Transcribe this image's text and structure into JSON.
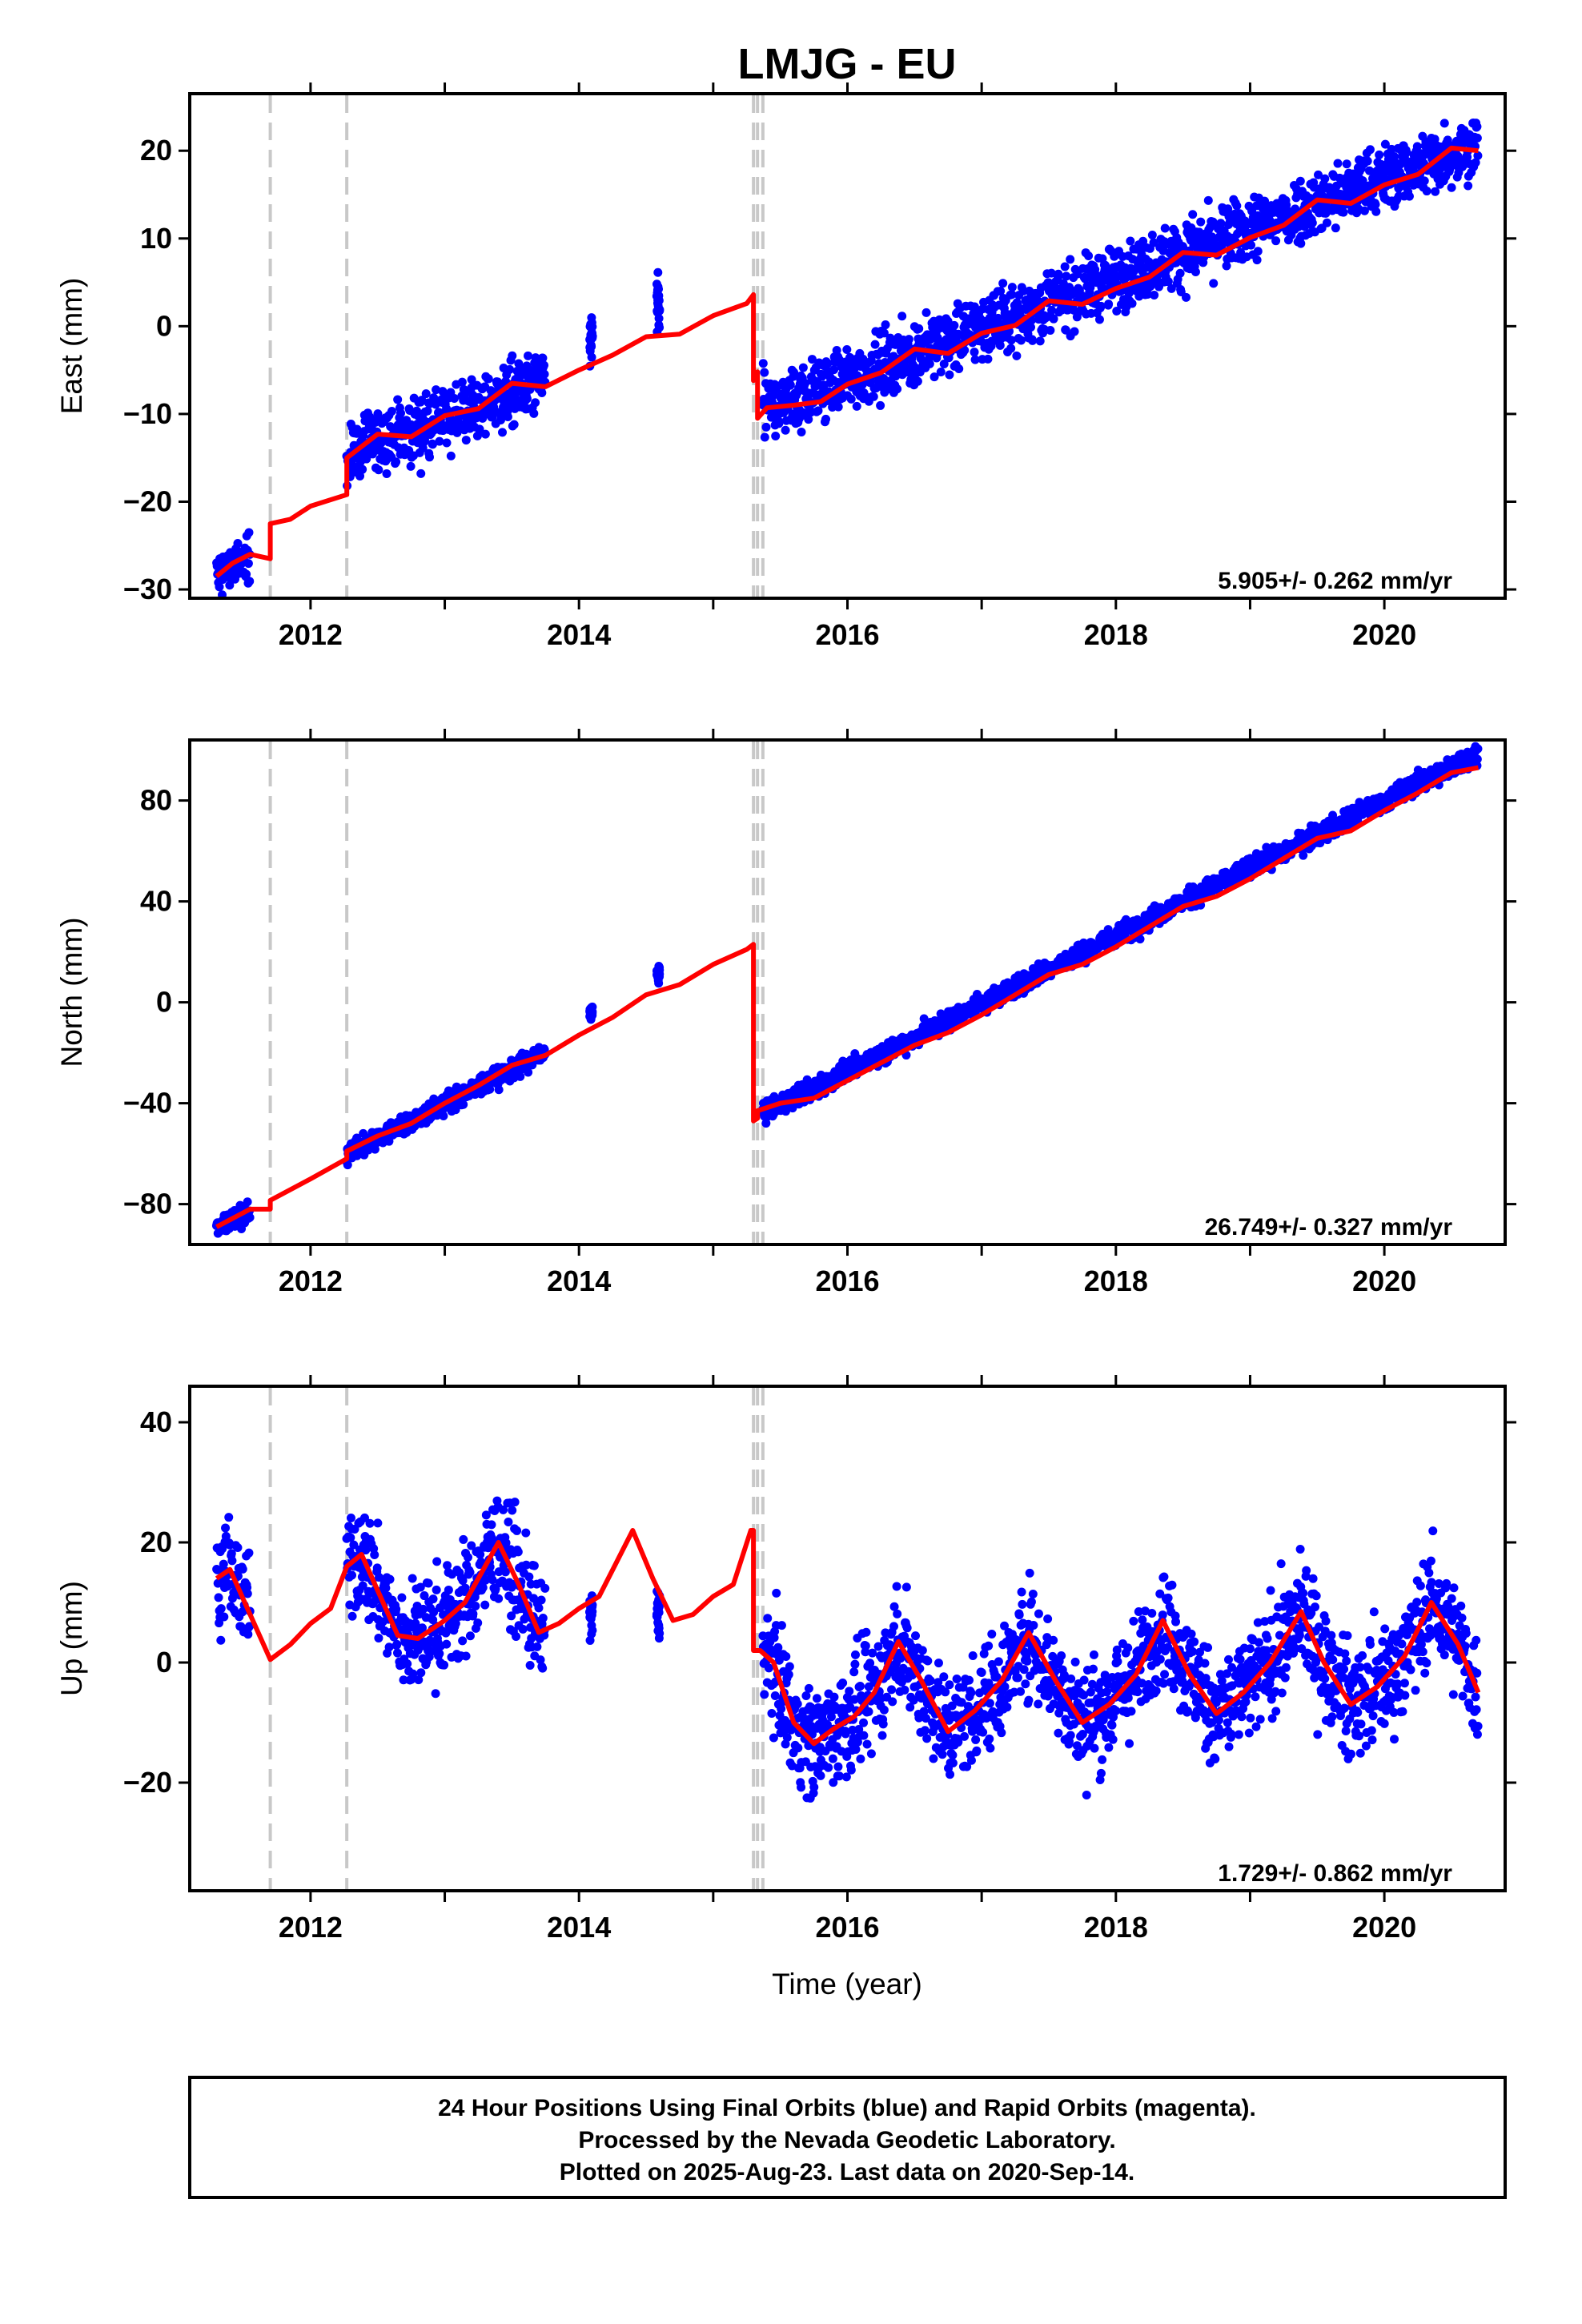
{
  "title": "LMJG - EU",
  "xlabel": "Time (year)",
  "caption": [
    "24 Hour Positions Using Final Orbits (blue) and Rapid Orbits (magenta).",
    "Processed by the Nevada Geodetic Laboratory.",
    "Plotted on 2025-Aug-23. Last data on 2020-Sep-14."
  ],
  "colors": {
    "data": "#0000ff",
    "model": "#ff0000",
    "offset_line": "#c8c8c8",
    "frame": "#000000"
  },
  "offset_epochs": [
    2011.7,
    2012.27,
    2015.3,
    2015.33,
    2015.37
  ],
  "x_ticks": [
    "2012",
    "2014",
    "2016",
    "2018",
    "2020"
  ],
  "chart_data": [
    {
      "type": "scatter",
      "ylabel": "East (mm)",
      "rate": "5.905+/- 0.262 mm/yr",
      "xlim": [
        2011.1,
        2020.9
      ],
      "ylim": [
        -31,
        26.5
      ],
      "y_ticks": [
        -30,
        -20,
        -10,
        0,
        10,
        20
      ],
      "series": [
        {
          "segments": [
            {
              "from": 2011.3,
              "to": 2011.55,
              "kind": "trend",
              "start": -28.5,
              "slope": 8,
              "spread": 1.5
            },
            {
              "from": 2012.27,
              "to": 2013.75,
              "kind": "trend",
              "start": -14.5,
              "slope": 5.5,
              "spread": 1.8
            },
            {
              "from": 2014.08,
              "to": 2014.1,
              "kind": "cluster",
              "center": -1.5,
              "spread": 1.5
            },
            {
              "from": 2014.58,
              "to": 2014.6,
              "kind": "cluster",
              "center": 2.5,
              "spread": 1.8
            },
            {
              "from": 2015.37,
              "to": 2020.7,
              "kind": "trend",
              "start": -9.5,
              "slope": 5.7,
              "spread": 1.8
            }
          ]
        },
        {
          "model": [
            [
              2011.3,
              -28.5
            ],
            [
              2011.42,
              -27
            ],
            [
              2011.55,
              -26
            ],
            [
              2011.7,
              -26.5
            ],
            [
              2011.7,
              -22.5
            ],
            [
              2011.85,
              -22
            ],
            [
              2012.0,
              -20.5
            ],
            [
              2012.27,
              -19.2
            ],
            [
              2012.27,
              -15
            ],
            [
              2012.5,
              -12.3
            ],
            [
              2012.75,
              -12.6
            ],
            [
              2013.0,
              -10.2
            ],
            [
              2013.25,
              -9.4
            ],
            [
              2013.5,
              -6.5
            ],
            [
              2013.75,
              -6.9
            ],
            [
              2014.0,
              -5
            ],
            [
              2014.25,
              -3.3
            ],
            [
              2014.5,
              -1.2
            ],
            [
              2014.75,
              -0.9
            ],
            [
              2015.0,
              1.2
            ],
            [
              2015.25,
              2.6
            ],
            [
              2015.3,
              3.6
            ],
            [
              2015.3,
              -6.2
            ],
            [
              2015.33,
              -5.2
            ],
            [
              2015.33,
              -10.5
            ],
            [
              2015.4,
              -9.3
            ],
            [
              2015.6,
              -9
            ],
            [
              2015.8,
              -8.6
            ],
            [
              2016.0,
              -6.6
            ],
            [
              2016.25,
              -5.3
            ],
            [
              2016.5,
              -2.6
            ],
            [
              2016.75,
              -3.1
            ],
            [
              2017.0,
              -0.8
            ],
            [
              2017.25,
              0.1
            ],
            [
              2017.5,
              2.9
            ],
            [
              2017.75,
              2.5
            ],
            [
              2018.0,
              4.3
            ],
            [
              2018.25,
              5.6
            ],
            [
              2018.5,
              8.4
            ],
            [
              2018.75,
              8.1
            ],
            [
              2019.0,
              10.1
            ],
            [
              2019.25,
              11.5
            ],
            [
              2019.5,
              14.4
            ],
            [
              2019.75,
              14.0
            ],
            [
              2020.0,
              16.1
            ],
            [
              2020.25,
              17.3
            ],
            [
              2020.5,
              20.3
            ],
            [
              2020.7,
              20.0
            ]
          ]
        }
      ]
    },
    {
      "type": "scatter",
      "ylabel": "North (mm)",
      "rate": "26.749+/- 0.327 mm/yr",
      "xlim": [
        2011.1,
        2020.9
      ],
      "ylim": [
        -96,
        104
      ],
      "y_ticks": [
        -80,
        -40,
        0,
        40,
        80
      ],
      "series": [
        {
          "segments": [
            {
              "from": 2011.3,
              "to": 2011.55,
              "kind": "trend",
              "start": -90,
              "slope": 30,
              "spread": 2
            },
            {
              "from": 2012.27,
              "to": 2013.75,
              "kind": "trend",
              "start": -60,
              "slope": 27,
              "spread": 2
            },
            {
              "from": 2014.08,
              "to": 2014.1,
              "kind": "cluster",
              "center": -4,
              "spread": 1.5
            },
            {
              "from": 2014.58,
              "to": 2014.6,
              "kind": "cluster",
              "center": 11,
              "spread": 1.5
            },
            {
              "from": 2015.37,
              "to": 2020.7,
              "kind": "trend",
              "start": -44,
              "slope": 26.75,
              "spread": 2
            }
          ]
        },
        {
          "model": [
            [
              2011.3,
              -89
            ],
            [
              2011.55,
              -82
            ],
            [
              2011.7,
              -82
            ],
            [
              2011.7,
              -78.5
            ],
            [
              2012.0,
              -70
            ],
            [
              2012.27,
              -62
            ],
            [
              2012.27,
              -59
            ],
            [
              2012.5,
              -53
            ],
            [
              2012.75,
              -48
            ],
            [
              2013.0,
              -40
            ],
            [
              2013.25,
              -33
            ],
            [
              2013.5,
              -25
            ],
            [
              2013.75,
              -21
            ],
            [
              2014.0,
              -13
            ],
            [
              2014.25,
              -6
            ],
            [
              2014.5,
              3
            ],
            [
              2014.75,
              7
            ],
            [
              2015.0,
              15
            ],
            [
              2015.25,
              21
            ],
            [
              2015.3,
              23
            ],
            [
              2015.3,
              -47
            ],
            [
              2015.33,
              -46
            ],
            [
              2015.33,
              -43
            ],
            [
              2015.5,
              -40
            ],
            [
              2015.75,
              -38
            ],
            [
              2016.0,
              -31
            ],
            [
              2016.25,
              -24
            ],
            [
              2016.5,
              -17
            ],
            [
              2016.75,
              -12
            ],
            [
              2017.0,
              -5
            ],
            [
              2017.25,
              3
            ],
            [
              2017.5,
              11
            ],
            [
              2017.75,
              15
            ],
            [
              2018.0,
              22
            ],
            [
              2018.25,
              30
            ],
            [
              2018.5,
              38
            ],
            [
              2018.75,
              42
            ],
            [
              2019.0,
              49
            ],
            [
              2019.25,
              57
            ],
            [
              2019.5,
              65
            ],
            [
              2019.75,
              68
            ],
            [
              2020.0,
              76
            ],
            [
              2020.25,
              83
            ],
            [
              2020.5,
              91
            ],
            [
              2020.7,
              93
            ]
          ]
        }
      ]
    },
    {
      "type": "scatter",
      "ylabel": "Up (mm)",
      "rate": "1.729+/- 0.862 mm/yr",
      "xlim": [
        2011.1,
        2020.9
      ],
      "ylim": [
        -38,
        46
      ],
      "y_ticks": [
        -20,
        0,
        20,
        40
      ],
      "series": [
        {
          "segments": [
            {
              "from": 2011.3,
              "to": 2011.55,
              "kind": "seasonal",
              "spread": 4
            },
            {
              "from": 2012.27,
              "to": 2013.75,
              "kind": "seasonal",
              "spread": 4.5
            },
            {
              "from": 2014.08,
              "to": 2014.1,
              "kind": "cluster",
              "center": 8,
              "spread": 2
            },
            {
              "from": 2014.58,
              "to": 2014.6,
              "kind": "cluster",
              "center": 8,
              "spread": 2
            },
            {
              "from": 2015.37,
              "to": 2020.7,
              "kind": "seasonal",
              "spread": 4.5
            }
          ]
        },
        {
          "model": [
            [
              2011.3,
              14
            ],
            [
              2011.4,
              15.5
            ],
            [
              2011.55,
              8
            ],
            [
              2011.7,
              0.5
            ],
            [
              2011.85,
              3
            ],
            [
              2012.0,
              6.5
            ],
            [
              2012.15,
              9
            ],
            [
              2012.27,
              16
            ],
            [
              2012.38,
              18
            ],
            [
              2012.5,
              12
            ],
            [
              2012.65,
              4.5
            ],
            [
              2012.8,
              4
            ],
            [
              2013.0,
              7
            ],
            [
              2013.15,
              10
            ],
            [
              2013.4,
              20
            ],
            [
              2013.55,
              13
            ],
            [
              2013.7,
              5
            ],
            [
              2013.85,
              6.5
            ],
            [
              2014.0,
              9
            ],
            [
              2014.15,
              11
            ],
            [
              2014.4,
              22
            ],
            [
              2014.55,
              14
            ],
            [
              2014.7,
              7
            ],
            [
              2014.85,
              8
            ],
            [
              2015.0,
              11
            ],
            [
              2015.15,
              13
            ],
            [
              2015.28,
              22
            ],
            [
              2015.3,
              22
            ],
            [
              2015.3,
              2
            ],
            [
              2015.35,
              2
            ],
            [
              2015.45,
              0
            ],
            [
              2015.6,
              -10
            ],
            [
              2015.75,
              -13.5
            ],
            [
              2015.9,
              -11
            ],
            [
              2016.05,
              -9
            ],
            [
              2016.2,
              -5
            ],
            [
              2016.38,
              3.5
            ],
            [
              2016.55,
              -3
            ],
            [
              2016.75,
              -11.5
            ],
            [
              2016.95,
              -8
            ],
            [
              2017.15,
              -3
            ],
            [
              2017.35,
              5
            ],
            [
              2017.55,
              -3
            ],
            [
              2017.75,
              -10
            ],
            [
              2017.95,
              -7
            ],
            [
              2018.15,
              -2
            ],
            [
              2018.35,
              7
            ],
            [
              2018.55,
              -2
            ],
            [
              2018.75,
              -8.5
            ],
            [
              2018.95,
              -5
            ],
            [
              2019.15,
              0
            ],
            [
              2019.38,
              8.5
            ],
            [
              2019.55,
              0
            ],
            [
              2019.75,
              -7
            ],
            [
              2019.95,
              -4
            ],
            [
              2020.15,
              1
            ],
            [
              2020.35,
              10
            ],
            [
              2020.55,
              3
            ],
            [
              2020.7,
              -5
            ]
          ]
        }
      ]
    }
  ]
}
